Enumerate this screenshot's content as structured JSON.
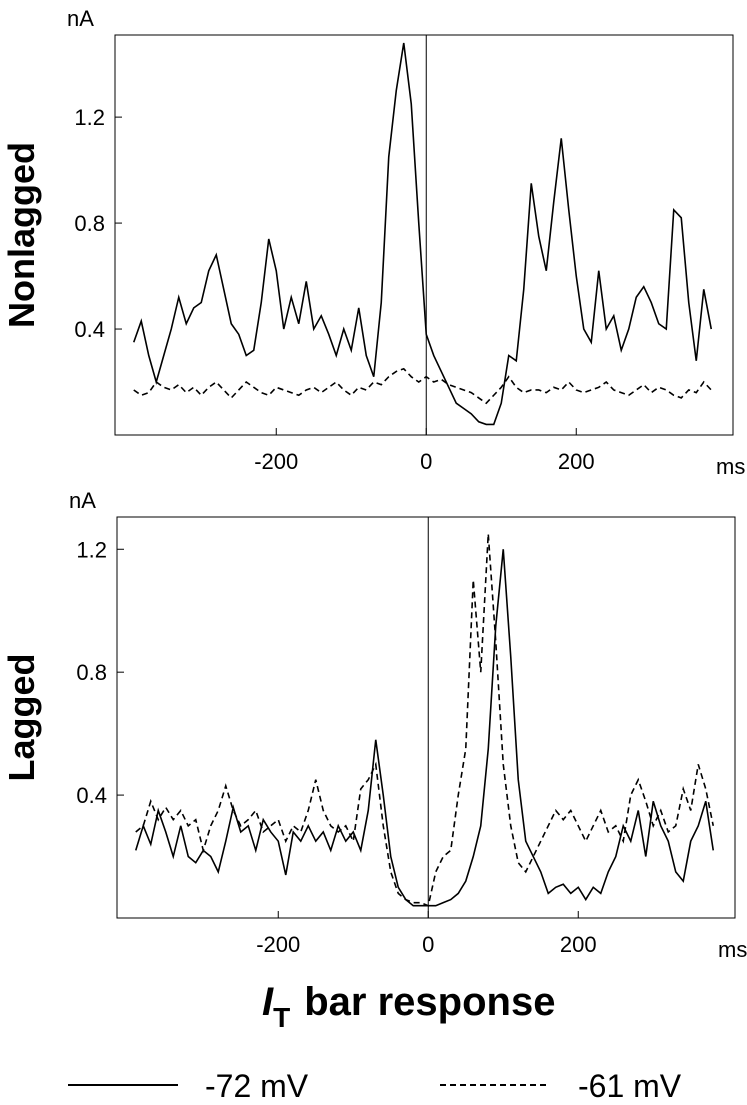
{
  "figure_title": {
    "symbol": "I",
    "subscript": "T",
    "rest": "bar response"
  },
  "chart_data": [
    {
      "type": "line",
      "y_label": "Nonlagged",
      "y_unit": "nA",
      "x_unit": "ms",
      "xlim": [
        -415,
        409
      ],
      "ylim": [
        0,
        1.51
      ],
      "xticks": [
        -200,
        0,
        200
      ],
      "yticks": [
        0.4,
        0.8,
        1.2
      ],
      "x": [
        -390,
        -380,
        -370,
        -360,
        -350,
        -340,
        -330,
        -320,
        -310,
        -300,
        -290,
        -280,
        -270,
        -260,
        -250,
        -240,
        -230,
        -220,
        -210,
        -200,
        -190,
        -180,
        -170,
        -160,
        -150,
        -140,
        -130,
        -120,
        -110,
        -100,
        -90,
        -80,
        -70,
        -60,
        -50,
        -40,
        -30,
        -20,
        -10,
        0,
        10,
        20,
        30,
        40,
        50,
        60,
        70,
        80,
        90,
        100,
        110,
        120,
        130,
        140,
        150,
        160,
        170,
        180,
        190,
        200,
        210,
        220,
        230,
        240,
        250,
        260,
        270,
        280,
        290,
        300,
        310,
        320,
        330,
        340,
        350,
        360,
        370,
        380
      ],
      "series": [
        {
          "name": "-72 mV",
          "color": "#000000",
          "dash": "solid",
          "values": [
            0.35,
            0.43,
            0.3,
            0.2,
            0.3,
            0.4,
            0.52,
            0.42,
            0.48,
            0.5,
            0.62,
            0.68,
            0.55,
            0.42,
            0.38,
            0.3,
            0.32,
            0.5,
            0.74,
            0.62,
            0.4,
            0.52,
            0.42,
            0.58,
            0.4,
            0.45,
            0.38,
            0.3,
            0.4,
            0.32,
            0.48,
            0.3,
            0.22,
            0.5,
            1.05,
            1.3,
            1.48,
            1.25,
            0.8,
            0.38,
            0.3,
            0.24,
            0.18,
            0.12,
            0.1,
            0.08,
            0.05,
            0.04,
            0.04,
            0.12,
            0.3,
            0.28,
            0.55,
            0.95,
            0.75,
            0.62,
            0.88,
            1.12,
            0.85,
            0.6,
            0.4,
            0.35,
            0.62,
            0.4,
            0.45,
            0.32,
            0.4,
            0.52,
            0.56,
            0.5,
            0.42,
            0.4,
            0.85,
            0.82,
            0.5,
            0.28,
            0.55,
            0.4
          ]
        },
        {
          "name": "-61 mV",
          "color": "#000000",
          "dash": "dashed",
          "values": [
            0.17,
            0.15,
            0.16,
            0.2,
            0.18,
            0.17,
            0.19,
            0.16,
            0.18,
            0.15,
            0.18,
            0.2,
            0.17,
            0.14,
            0.17,
            0.2,
            0.18,
            0.16,
            0.15,
            0.18,
            0.17,
            0.16,
            0.15,
            0.17,
            0.18,
            0.16,
            0.18,
            0.2,
            0.17,
            0.15,
            0.18,
            0.17,
            0.2,
            0.19,
            0.22,
            0.24,
            0.25,
            0.22,
            0.2,
            0.22,
            0.2,
            0.21,
            0.19,
            0.18,
            0.17,
            0.16,
            0.14,
            0.12,
            0.15,
            0.18,
            0.22,
            0.18,
            0.16,
            0.17,
            0.17,
            0.16,
            0.18,
            0.17,
            0.2,
            0.17,
            0.16,
            0.17,
            0.18,
            0.2,
            0.17,
            0.16,
            0.15,
            0.17,
            0.19,
            0.16,
            0.18,
            0.17,
            0.15,
            0.14,
            0.17,
            0.16,
            0.2,
            0.17
          ]
        }
      ]
    },
    {
      "type": "line",
      "y_label": "Lagged",
      "y_unit": "nA",
      "x_unit": "ms",
      "xlim": [
        -415,
        409
      ],
      "ylim": [
        0,
        1.305
      ],
      "xticks": [
        -200,
        0,
        200
      ],
      "yticks": [
        0.4,
        0.8,
        1.2
      ],
      "x": [
        -390,
        -380,
        -370,
        -360,
        -350,
        -340,
        -330,
        -320,
        -310,
        -300,
        -290,
        -280,
        -270,
        -260,
        -250,
        -240,
        -230,
        -220,
        -210,
        -200,
        -190,
        -180,
        -170,
        -160,
        -150,
        -140,
        -130,
        -120,
        -110,
        -100,
        -90,
        -80,
        -70,
        -60,
        -50,
        -40,
        -30,
        -20,
        -10,
        0,
        10,
        20,
        30,
        40,
        50,
        60,
        70,
        80,
        90,
        100,
        110,
        120,
        130,
        140,
        150,
        160,
        170,
        180,
        190,
        200,
        210,
        220,
        230,
        240,
        250,
        260,
        270,
        280,
        290,
        300,
        310,
        320,
        330,
        340,
        350,
        360,
        370,
        380
      ],
      "series": [
        {
          "name": "-72 mV",
          "color": "#000000",
          "dash": "solid",
          "values": [
            0.22,
            0.3,
            0.24,
            0.35,
            0.28,
            0.2,
            0.3,
            0.2,
            0.18,
            0.22,
            0.2,
            0.15,
            0.25,
            0.36,
            0.28,
            0.3,
            0.22,
            0.32,
            0.28,
            0.25,
            0.14,
            0.28,
            0.25,
            0.3,
            0.25,
            0.28,
            0.22,
            0.3,
            0.25,
            0.28,
            0.22,
            0.35,
            0.58,
            0.4,
            0.2,
            0.1,
            0.06,
            0.04,
            0.04,
            0.04,
            0.04,
            0.05,
            0.06,
            0.08,
            0.12,
            0.2,
            0.3,
            0.55,
            0.95,
            1.2,
            0.85,
            0.45,
            0.25,
            0.2,
            0.15,
            0.08,
            0.1,
            0.11,
            0.08,
            0.1,
            0.06,
            0.1,
            0.08,
            0.15,
            0.2,
            0.3,
            0.25,
            0.35,
            0.2,
            0.38,
            0.3,
            0.25,
            0.15,
            0.12,
            0.25,
            0.3,
            0.38,
            0.22
          ]
        },
        {
          "name": "-61 mV",
          "color": "#000000",
          "dash": "dashed",
          "values": [
            0.28,
            0.3,
            0.38,
            0.32,
            0.36,
            0.32,
            0.35,
            0.3,
            0.32,
            0.22,
            0.3,
            0.35,
            0.43,
            0.35,
            0.3,
            0.32,
            0.35,
            0.28,
            0.3,
            0.32,
            0.25,
            0.3,
            0.28,
            0.35,
            0.45,
            0.35,
            0.3,
            0.28,
            0.3,
            0.25,
            0.42,
            0.45,
            0.5,
            0.3,
            0.15,
            0.08,
            0.06,
            0.05,
            0.05,
            0.04,
            0.15,
            0.2,
            0.22,
            0.4,
            0.55,
            1.1,
            0.8,
            1.25,
            0.9,
            0.5,
            0.3,
            0.18,
            0.15,
            0.2,
            0.25,
            0.3,
            0.35,
            0.32,
            0.35,
            0.3,
            0.25,
            0.3,
            0.35,
            0.28,
            0.3,
            0.25,
            0.4,
            0.45,
            0.38,
            0.3,
            0.35,
            0.28,
            0.3,
            0.42,
            0.35,
            0.5,
            0.42,
            0.3
          ]
        }
      ]
    }
  ]
}
